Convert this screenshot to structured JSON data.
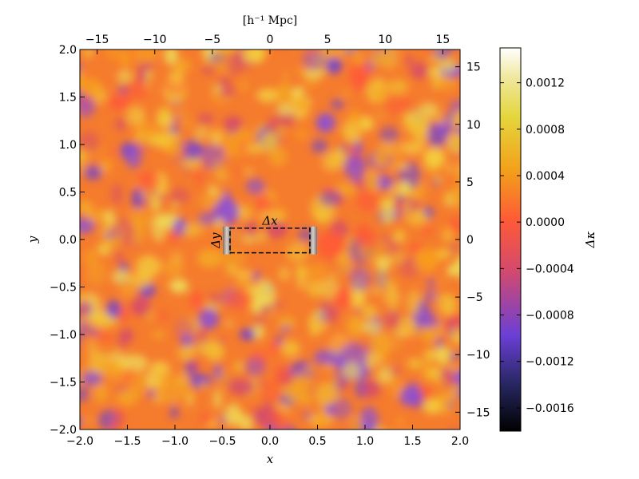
{
  "chart_data": {
    "type": "heatmap",
    "title": "",
    "xlabel": "x",
    "ylabel": "y",
    "x2label": "[h⁻¹ Mpc]",
    "colorbar_label": "Δκ",
    "xlim": [
      -2.0,
      2.0
    ],
    "ylim": [
      -2.0,
      2.0
    ],
    "x2lim": [
      -16.5,
      16.5
    ],
    "y2lim": [
      -16.5,
      16.5
    ],
    "x_ticks": [
      "−2.0",
      "−1.5",
      "−1.0",
      "−0.5",
      "0.0",
      "0.5",
      "1.0",
      "1.5",
      "2.0"
    ],
    "y_ticks": [
      "−2.0",
      "−1.5",
      "−1.0",
      "−0.5",
      "0.0",
      "0.5",
      "1.0",
      "1.5",
      "2.0"
    ],
    "x2_ticks": [
      "−15",
      "−10",
      "−5",
      "0",
      "5",
      "10",
      "15"
    ],
    "y2_ticks": [
      "−15",
      "−10",
      "−5",
      "0",
      "5",
      "10",
      "15"
    ],
    "colorbar_ticks": [
      "0.0012",
      "0.0008",
      "0.0004",
      "0.0000",
      "−0.0004",
      "−0.0008",
      "−0.0012",
      "−0.0016"
    ],
    "colorbar_range": [
      -0.0018,
      0.0015
    ],
    "colormap": "CMRmap",
    "grid": false,
    "annotations": {
      "delta_x_label": "Δx",
      "delta_y_label": "Δy",
      "box_x": [
        -0.42,
        0.42
      ],
      "box_y": [
        -0.14,
        0.12
      ]
    }
  }
}
